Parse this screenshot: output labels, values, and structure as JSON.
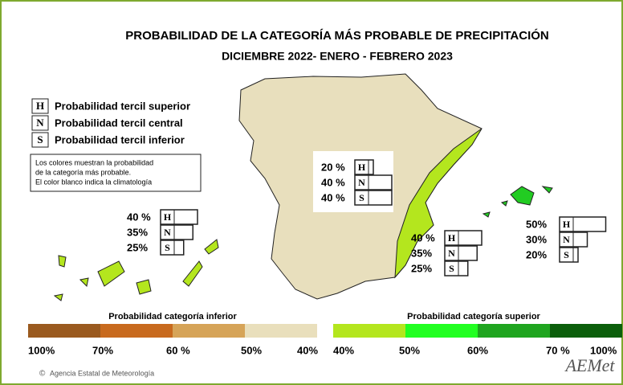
{
  "title": "PROBABILIDAD DE LA  CATEGORÍA MÁS PROBABLE DE PRECIPITACIÓN",
  "subtitle": "DICIEMBRE 2022- ENERO - FEBRERO 2023",
  "key": [
    {
      "letter": "H",
      "label": "Probabilidad  tercil superior"
    },
    {
      "letter": "N",
      "label": "Probabilidad  tercil central"
    },
    {
      "letter": "S",
      "label": "Probabilidad  tercil inferior"
    }
  ],
  "note": [
    "Los colores muestran la probabilidad",
    "de la categoría más probable.",
    "El color blanco indica la climatología"
  ],
  "blocks": [
    {
      "rows": [
        {
          "percent": 20,
          "percent_label": "20 %",
          "letter": "H"
        },
        {
          "percent": 40,
          "percent_label": "40 %",
          "letter": "N"
        },
        {
          "percent": 40,
          "percent_label": "40 %",
          "letter": "S"
        }
      ]
    },
    {
      "rows": [
        {
          "percent": 40,
          "percent_label": "40 %",
          "letter": "H"
        },
        {
          "percent": 35,
          "percent_label": "35%",
          "letter": "N"
        },
        {
          "percent": 25,
          "percent_label": "25%",
          "letter": "S"
        }
      ]
    },
    {
      "rows": [
        {
          "percent": 40,
          "percent_label": "40 %",
          "letter": "H"
        },
        {
          "percent": 35,
          "percent_label": "35%",
          "letter": "N"
        },
        {
          "percent": 25,
          "percent_label": "25%",
          "letter": "S"
        }
      ]
    },
    {
      "rows": [
        {
          "percent": 50,
          "percent_label": "50%",
          "letter": "H"
        },
        {
          "percent": 30,
          "percent_label": "30%",
          "letter": "N"
        },
        {
          "percent": 20,
          "percent_label": "20%",
          "letter": "S"
        }
      ]
    }
  ],
  "scale_inferior": {
    "label": "Probabilidad categoría inferior",
    "colors": [
      "#9a5a1f",
      "#c86a1e",
      "#d6a458",
      "#e9dfbc"
    ],
    "ticks": [
      "100%",
      "70%",
      "60 %",
      "50%",
      "40%"
    ]
  },
  "scale_superior": {
    "label": "Probabilidad categoría superior",
    "colors": [
      "#b4e61e",
      "#22ff22",
      "#1fa51f",
      "#0b5e0b"
    ],
    "ticks": [
      "40%",
      "50%",
      "60%",
      "70 %",
      "100%"
    ]
  },
  "copyright": "Agencia Estatal de Meteorología",
  "logo": "AEMet"
}
